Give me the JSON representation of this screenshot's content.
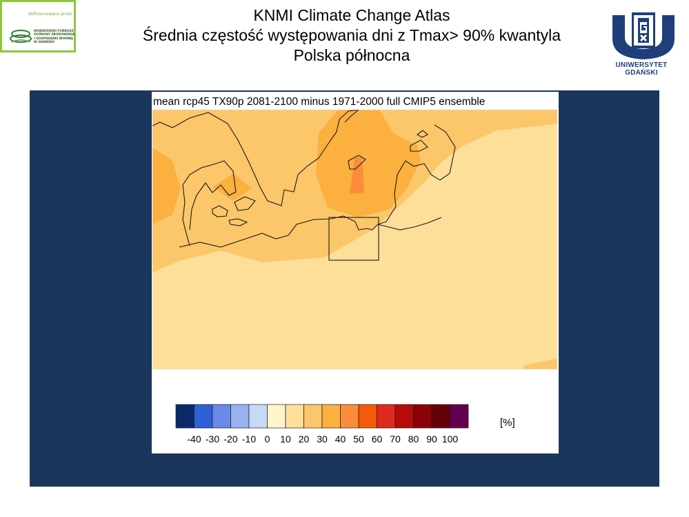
{
  "header": {
    "title_lines": [
      "KNMI Climate Change Atlas",
      "Średnia częstość występowania dni z Tmax> 90% kwantyla",
      "Polska północna"
    ]
  },
  "sponsor": {
    "top_text": "dofinansowane przez",
    "lines": [
      "WOJEWÓDZKI FUNDUSZ",
      "OCHRONY ŚRODOWISKA",
      "I GOSPODARKI WODNEJ",
      "W GDAŃSKU"
    ],
    "border_color": "#8dc63f"
  },
  "university": {
    "name": "UNIWERSYTET GDAŃSKI",
    "color": "#1f3f7a"
  },
  "colors": {
    "panel_background": "#1b365d"
  },
  "chart_data": {
    "type": "heatmap",
    "title": "mean rcp45 TX90p 2081-2100 minus 1971-2000  full CMIP5 ensemble",
    "unit_label": "[%]",
    "colorbar": {
      "tick_labels": [
        "-40",
        "-30",
        "-20",
        "-10",
        "0",
        "10",
        "20",
        "30",
        "40",
        "50",
        "60",
        "70",
        "80",
        "90",
        "100"
      ],
      "colors": [
        "#0a2a6b",
        "#3060d8",
        "#6a8ae8",
        "#98b2f0",
        "#cad8f8",
        "#fff5cc",
        "#fddf9a",
        "#fcc66a",
        "#fbb040",
        "#fa8c3c",
        "#f45a0a",
        "#e02a20",
        "#b80a0a",
        "#8c0008",
        "#640008",
        "#640050"
      ]
    },
    "region": "Polska północna (box over northern Poland)",
    "field_description": "increase of 10-30% across map; 30-40% over southern Sweden / southern Baltic; 40-50% maximum near Öland"
  }
}
